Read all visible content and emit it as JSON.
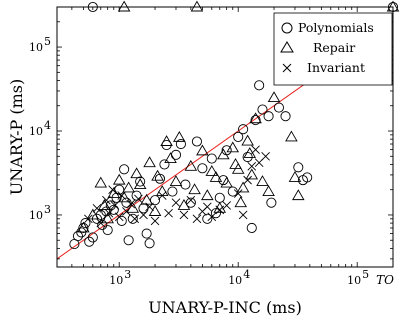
{
  "chart_data": {
    "type": "scatter",
    "xlabel": "UNARY-P-INC (ms)",
    "ylabel": "UNARY-P (ms)",
    "xscale": "log",
    "yscale": "log",
    "xlim": [
      300,
      200000
    ],
    "ylim": [
      240,
      300000
    ],
    "x_ticks": [
      {
        "value": 1000,
        "label": "10",
        "exp": "3"
      },
      {
        "value": 10000,
        "label": "10",
        "exp": "4"
      },
      {
        "value": 100000,
        "label": "10",
        "exp": "5"
      },
      {
        "value": 200000,
        "label": "TO",
        "exp": ""
      }
    ],
    "y_ticks": [
      {
        "value": 1000,
        "label": "10",
        "exp": "3"
      },
      {
        "value": 10000,
        "label": "10",
        "exp": "4"
      },
      {
        "value": 100000,
        "label": "10",
        "exp": "5"
      },
      {
        "value": 300000,
        "label": "TO",
        "exp": ""
      }
    ],
    "timeout_label": "TO",
    "diagonal": {
      "color": "#e8231c"
    },
    "legend": {
      "position": "top-right"
    },
    "series": [
      {
        "name": "Polynomials",
        "marker": "circle",
        "points": [
          [
            600,
            300000
          ],
          [
            200000,
            300000
          ],
          [
            420,
            450
          ],
          [
            450,
            560
          ],
          [
            480,
            620
          ],
          [
            500,
            700
          ],
          [
            520,
            800
          ],
          [
            560,
            480
          ],
          [
            600,
            540
          ],
          [
            650,
            900
          ],
          [
            700,
            1000
          ],
          [
            720,
            760
          ],
          [
            780,
            1100
          ],
          [
            800,
            660
          ],
          [
            850,
            1300
          ],
          [
            900,
            1150
          ],
          [
            950,
            1600
          ],
          [
            1000,
            2000
          ],
          [
            1050,
            850
          ],
          [
            1100,
            3500
          ],
          [
            1150,
            1400
          ],
          [
            1200,
            500
          ],
          [
            1300,
            900
          ],
          [
            1400,
            1700
          ],
          [
            1500,
            2500
          ],
          [
            1600,
            1200
          ],
          [
            1700,
            600
          ],
          [
            1800,
            460
          ],
          [
            2000,
            1500
          ],
          [
            2200,
            2700
          ],
          [
            2400,
            4000
          ],
          [
            2500,
            6800
          ],
          [
            2800,
            1900
          ],
          [
            3000,
            5200
          ],
          [
            3300,
            7000
          ],
          [
            3600,
            2300
          ],
          [
            4000,
            1400
          ],
          [
            4500,
            7500
          ],
          [
            5000,
            3600
          ],
          [
            5500,
            900
          ],
          [
            6000,
            4700
          ],
          [
            6500,
            1050
          ],
          [
            7000,
            1600
          ],
          [
            7500,
            2600
          ],
          [
            8000,
            5900
          ],
          [
            9000,
            1900
          ],
          [
            10000,
            8500
          ],
          [
            11000,
            10500
          ],
          [
            12000,
            4900
          ],
          [
            13000,
            700
          ],
          [
            14000,
            13500
          ],
          [
            15000,
            35000
          ],
          [
            16000,
            18000
          ],
          [
            18000,
            15000
          ],
          [
            19000,
            1400
          ],
          [
            22000,
            19000
          ],
          [
            25000,
            15000
          ],
          [
            32000,
            3700
          ],
          [
            35000,
            2600
          ],
          [
            38000,
            2800
          ]
        ]
      },
      {
        "name": "Repair",
        "marker": "triangle",
        "points": [
          [
            1100,
            300000
          ],
          [
            4500,
            300000
          ],
          [
            200000,
            300000
          ],
          [
            500,
            700
          ],
          [
            600,
            1000
          ],
          [
            700,
            2400
          ],
          [
            750,
            1300
          ],
          [
            800,
            900
          ],
          [
            900,
            1800
          ],
          [
            1000,
            2600
          ],
          [
            1100,
            1600
          ],
          [
            1200,
            2100
          ],
          [
            1300,
            1200
          ],
          [
            1400,
            3100
          ],
          [
            1500,
            2300
          ],
          [
            1700,
            1500
          ],
          [
            1800,
            4200
          ],
          [
            2000,
            1100
          ],
          [
            2100,
            2900
          ],
          [
            2300,
            1900
          ],
          [
            2500,
            7500
          ],
          [
            2700,
            4700
          ],
          [
            3000,
            2500
          ],
          [
            3200,
            8400
          ],
          [
            3500,
            1300
          ],
          [
            4000,
            3800
          ],
          [
            4300,
            2000
          ],
          [
            5000,
            5800
          ],
          [
            5500,
            1700
          ],
          [
            6000,
            3300
          ],
          [
            6500,
            2800
          ],
          [
            7000,
            1200
          ],
          [
            7500,
            5200
          ],
          [
            8000,
            2400
          ],
          [
            9000,
            6300
          ],
          [
            9500,
            4000
          ],
          [
            10000,
            3500
          ],
          [
            10500,
            1400
          ],
          [
            11000,
            2100
          ],
          [
            12000,
            7600
          ],
          [
            12500,
            5400
          ],
          [
            13000,
            3000
          ],
          [
            14000,
            14000
          ],
          [
            16000,
            2500
          ],
          [
            18000,
            1900
          ],
          [
            20000,
            25000
          ],
          [
            28000,
            8500
          ],
          [
            30000,
            2800
          ],
          [
            32000,
            1700
          ]
        ]
      },
      {
        "name": "Invariant",
        "marker": "cross",
        "points": [
          [
            550,
            900
          ],
          [
            650,
            1200
          ],
          [
            700,
            800
          ],
          [
            780,
            1500
          ],
          [
            820,
            1050
          ],
          [
            880,
            2000
          ],
          [
            920,
            1300
          ],
          [
            1000,
            950
          ],
          [
            1050,
            1700
          ],
          [
            1150,
            1100
          ],
          [
            1250,
            1350
          ],
          [
            1350,
            900
          ],
          [
            1450,
            1550
          ],
          [
            1600,
            1000
          ],
          [
            1800,
            1250
          ],
          [
            2000,
            850
          ],
          [
            2300,
            1700
          ],
          [
            2600,
            1050
          ],
          [
            3000,
            1400
          ],
          [
            3500,
            1000
          ],
          [
            4000,
            1500
          ],
          [
            4500,
            900
          ],
          [
            5000,
            1100
          ],
          [
            5500,
            1250
          ],
          [
            6000,
            950
          ],
          [
            7000,
            1150
          ],
          [
            8000,
            1300
          ],
          [
            10000,
            1800
          ],
          [
            11000,
            1000
          ],
          [
            12000,
            2600
          ],
          [
            13000,
            3800
          ],
          [
            14000,
            6000
          ],
          [
            15000,
            4200
          ],
          [
            17000,
            5000
          ]
        ]
      }
    ]
  }
}
